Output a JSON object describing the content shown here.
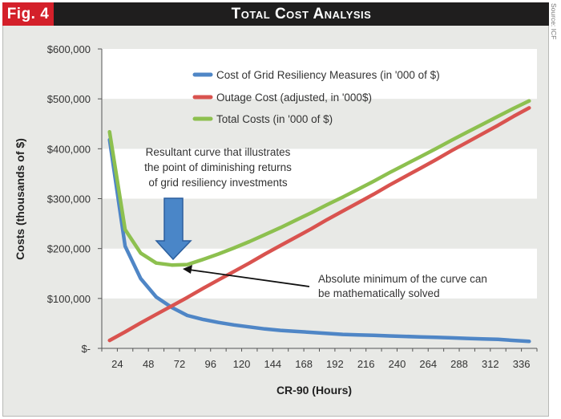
{
  "header": {
    "fig_label": "Fig. 4",
    "title": "Total Cost Analysis",
    "source": "Source: ICF"
  },
  "colors": {
    "header_bg": "#1f1e1e",
    "fig_tag": "#d4202a",
    "grid_cost": "#4f86c6",
    "outage_cost": "#d9534f",
    "total_cost": "#8dc04f",
    "callout_arrow": "#4a86c8"
  },
  "annotations": {
    "resultant_curve": [
      "Resultant curve that illustrates",
      "the point of diminishing returns",
      "of grid resiliency investments"
    ],
    "absolute_minimum": [
      "Absolute minimum of the curve can",
      "be mathematically solved"
    ]
  },
  "chart_data": {
    "type": "line",
    "title": "Total Cost Analysis",
    "xlabel": "CR-90 (Hours)",
    "ylabel": "Costs (thousands of $)",
    "ylim": [
      0,
      600000
    ],
    "yticks": [
      0,
      100000,
      200000,
      300000,
      400000,
      500000,
      600000
    ],
    "ytick_labels": [
      "$-",
      "$100,000",
      "$200,000",
      "$300,000",
      "$400,000",
      "$500,000",
      "$600,000"
    ],
    "xlim": [
      12,
      348
    ],
    "xtick_labels": [
      "24",
      "48",
      "72",
      "96",
      "120",
      "144",
      "168",
      "192",
      "216",
      "240",
      "264",
      "288",
      "312",
      "336"
    ],
    "xticks": [
      24,
      48,
      72,
      96,
      120,
      144,
      168,
      192,
      216,
      240,
      264,
      288,
      312,
      336
    ],
    "grid": "alternating horizontal bands",
    "legend_position": "top-center",
    "x": [
      18,
      30,
      42,
      54,
      66,
      78,
      90,
      102,
      114,
      126,
      138,
      150,
      162,
      174,
      186,
      198,
      210,
      222,
      234,
      246,
      258,
      270,
      282,
      294,
      306,
      318,
      330,
      342
    ],
    "series": [
      {
        "name": "Cost of Grid Resiliency Measures (in '000 of $)",
        "color": "#4f86c6",
        "values": [
          418000,
          205000,
          140000,
          103000,
          82000,
          66000,
          58000,
          52000,
          47000,
          43000,
          39000,
          36000,
          34000,
          32000,
          30000,
          28000,
          27000,
          26000,
          25000,
          24000,
          23000,
          22000,
          21000,
          20000,
          19000,
          18000,
          16000,
          14000
        ]
      },
      {
        "name": "Outage Cost (adjusted, in '000$)",
        "color": "#d9534f",
        "values": [
          16000,
          33000,
          51000,
          68000,
          85000,
          102000,
          120000,
          137000,
          154000,
          171000,
          189000,
          206000,
          223000,
          240000,
          258000,
          275000,
          292000,
          309000,
          327000,
          344000,
          361000,
          378000,
          396000,
          413000,
          430000,
          447000,
          465000,
          482000
        ]
      },
      {
        "name": "Total Costs (in '000 of $)",
        "color": "#8dc04f",
        "values": [
          434000,
          238000,
          191000,
          171000,
          167000,
          168000,
          178000,
          189000,
          201000,
          214000,
          228000,
          242000,
          257000,
          272000,
          288000,
          303000,
          319000,
          335000,
          352000,
          368000,
          384000,
          400000,
          417000,
          433000,
          449000,
          465000,
          481000,
          496000
        ]
      }
    ]
  }
}
